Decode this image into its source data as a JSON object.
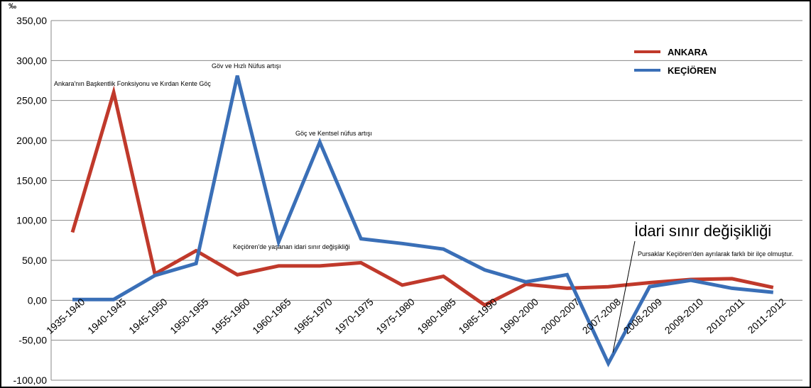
{
  "chart_data": {
    "type": "line",
    "ylabel": "‰",
    "ylim": [
      -100,
      350
    ],
    "ytick_labels": [
      "350,00",
      "300,00",
      "250,00",
      "200,00",
      "150,00",
      "100,00",
      "50,00",
      "0,00",
      "-50,00",
      "-100,00"
    ],
    "categories": [
      "1935-1940",
      "1940-1945",
      "1945-1950",
      "1950-1955",
      "1955-1960",
      "1960-1965",
      "1965-1970",
      "1970-1975",
      "1975-1980",
      "1980-1985",
      "1985-1990",
      "1990-2000",
      "2000-2007",
      "2007-2008",
      "2008-2009",
      "2009-2010",
      "2010-2011",
      "2011-2012"
    ],
    "series": [
      {
        "name": "ANKARA",
        "color": "#c0392b",
        "values": [
          85,
          260,
          33,
          62,
          32,
          43,
          43,
          47,
          19,
          30,
          -6,
          20,
          15,
          17,
          22,
          26,
          27,
          16
        ]
      },
      {
        "name": "KEÇİÖREN",
        "color": "#3a6fb7",
        "values": [
          1,
          1,
          31,
          46,
          281,
          73,
          198,
          77,
          71,
          64,
          38,
          23,
          32,
          -79,
          17,
          25,
          15,
          10
        ]
      }
    ],
    "legend_position": "top-right",
    "grid": "horizontal",
    "annotations": {
      "ankara_peak": "Ankara'nın Başkentlik Fonksiyonu ve Kırdan Kente Göç",
      "kec_peak1": "Göv ve Hızlı Nüfus artışı",
      "kec_peak2": "Göç ve Kentsel nüfus artışı",
      "kec_boundary": "Keçiören'de yaşanan idari sınır değişikliği",
      "idari_title": "İdari sınır değişikliği",
      "pursaklar": "Pursaklar Keçiören'den ayrılarak farklı bir ilçe olmuştur."
    }
  }
}
